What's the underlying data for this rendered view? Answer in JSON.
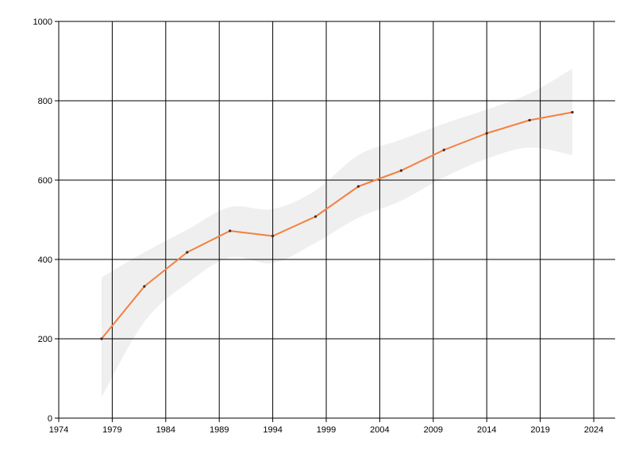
{
  "chart_data": {
    "type": "line",
    "title": "",
    "xlabel": "",
    "ylabel": "",
    "xlim": [
      1974,
      2026
    ],
    "ylim": [
      0,
      1000
    ],
    "x_ticks": [
      1974,
      1979,
      1984,
      1989,
      1994,
      1999,
      2004,
      2009,
      2014,
      2019,
      2024
    ],
    "y_ticks": [
      0,
      200,
      400,
      600,
      800,
      1000
    ],
    "grid": true,
    "legend": "none",
    "series": [
      {
        "color": "#f47f3f",
        "x": [
          1978,
          1982,
          1986,
          1990,
          1994,
          1998,
          2002,
          2006,
          2010,
          2014,
          2018,
          2022
        ],
        "values": [
          200,
          332,
          418,
          472,
          459,
          508,
          584,
          624,
          676,
          718,
          751,
          771
        ],
        "band_upper": [
          355,
          418,
          475,
          532,
          527,
          574,
          663,
          702,
          742,
          778,
          818,
          881
        ],
        "band_lower": [
          52,
          243,
          340,
          405,
          391,
          442,
          505,
          548,
          607,
          654,
          682,
          663
        ]
      }
    ],
    "band_color": "#efefef",
    "grid_color": "#000000"
  }
}
